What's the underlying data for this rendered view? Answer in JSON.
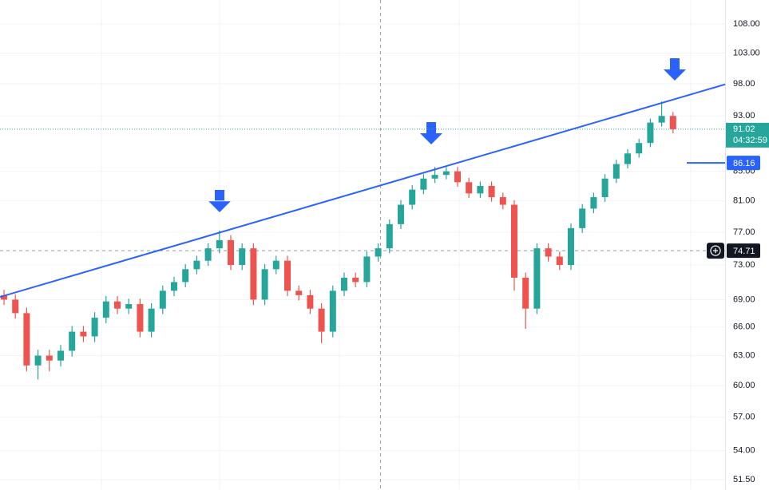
{
  "chart_data": {
    "type": "candlestick",
    "log_scale": true,
    "grid": true,
    "up_color": "#26a69a",
    "down_color": "#ef5350",
    "ylim": [
      50.64,
      112.28
    ],
    "yticks": [
      {
        "value": 108,
        "label": "108.00"
      },
      {
        "value": 103,
        "label": "103.00"
      },
      {
        "value": 98,
        "label": "98.00"
      },
      {
        "value": 93,
        "label": "93.00"
      },
      {
        "value": 85,
        "label": "85.00"
      },
      {
        "value": 81,
        "label": "81.00"
      },
      {
        "value": 77,
        "label": "77.00"
      },
      {
        "value": 73,
        "label": "73.00"
      },
      {
        "value": 69,
        "label": "69.00"
      },
      {
        "value": 66,
        "label": "66.00"
      },
      {
        "value": 63,
        "label": "63.00"
      },
      {
        "value": 60,
        "label": "60.00"
      },
      {
        "value": 57,
        "label": "57.00"
      },
      {
        "value": 54,
        "label": "54.00"
      },
      {
        "value": 51.5,
        "label": "51.50"
      }
    ],
    "open": [
      69.5,
      69.0,
      67.5,
      62.0,
      63.0,
      62.5,
      63.5,
      65.5,
      65.0,
      67.0,
      68.8,
      68.0,
      68.5,
      65.5,
      68.0,
      70.0,
      71.0,
      72.5,
      73.5,
      75.0,
      76.0,
      73.0,
      75.0,
      69.0,
      72.5,
      73.5,
      70.0,
      69.5,
      68.0,
      65.5,
      70.0,
      71.5,
      71.0,
      74.0,
      75.0,
      78.0,
      80.5,
      82.5,
      84.0,
      84.5,
      85.0,
      83.5,
      82.0,
      83.0,
      81.5,
      80.5,
      71.5,
      68.0,
      75.0,
      74.0,
      73.0,
      77.5,
      80.0,
      81.5,
      84.0,
      86.0,
      87.5,
      89.0,
      92.0,
      93.0
    ],
    "high": [
      70.1,
      69.6,
      68.1,
      63.6,
      63.6,
      64.1,
      66.1,
      66.1,
      67.6,
      69.4,
      69.4,
      69.1,
      69.1,
      68.6,
      70.6,
      71.6,
      73.1,
      74.1,
      75.6,
      77.2,
      76.6,
      75.6,
      75.6,
      73.1,
      74.1,
      74.1,
      70.6,
      70.1,
      68.6,
      70.6,
      72.1,
      72.1,
      74.6,
      75.6,
      78.6,
      81.1,
      83.1,
      84.6,
      85.6,
      85.6,
      85.6,
      84.1,
      83.6,
      83.6,
      82.1,
      81.1,
      72.1,
      75.6,
      75.6,
      74.6,
      78.1,
      80.6,
      82.1,
      84.6,
      86.6,
      88.1,
      89.6,
      92.6,
      95.2,
      93.6
    ],
    "low": [
      68.4,
      66.9,
      61.4,
      60.6,
      61.4,
      61.9,
      62.9,
      64.4,
      64.4,
      66.4,
      67.4,
      67.4,
      64.9,
      64.9,
      67.4,
      69.4,
      70.4,
      71.9,
      72.9,
      74.4,
      72.4,
      72.4,
      68.4,
      68.4,
      71.9,
      69.4,
      68.9,
      67.4,
      64.3,
      64.9,
      69.4,
      70.4,
      70.4,
      73.4,
      74.4,
      77.4,
      79.9,
      81.9,
      83.4,
      83.9,
      82.9,
      81.4,
      81.4,
      80.9,
      79.9,
      70.0,
      65.8,
      67.4,
      73.4,
      72.4,
      72.4,
      76.9,
      79.4,
      80.9,
      83.4,
      85.4,
      86.9,
      88.4,
      91.4,
      90.4
    ],
    "close": [
      69.0,
      67.5,
      62.0,
      63.0,
      62.5,
      63.5,
      65.5,
      65.0,
      67.0,
      68.8,
      68.0,
      68.5,
      65.5,
      68.0,
      70.0,
      71.0,
      72.5,
      73.5,
      75.0,
      76.0,
      73.0,
      75.0,
      69.0,
      72.5,
      73.5,
      70.0,
      69.5,
      68.0,
      65.5,
      70.0,
      71.5,
      71.0,
      74.0,
      75.0,
      78.0,
      80.5,
      82.5,
      84.0,
      84.5,
      85.0,
      83.5,
      82.0,
      83.0,
      81.5,
      80.5,
      71.5,
      68.0,
      75.0,
      74.0,
      73.0,
      77.5,
      80.0,
      81.5,
      84.0,
      86.0,
      87.5,
      89.0,
      92.0,
      93.0,
      91.02
    ],
    "trendline": {
      "x": [
        -0.35,
        63.6
      ],
      "values": [
        69.3,
        97.9
      ],
      "color": "#2962ff"
    },
    "last_price": 91.02,
    "countdown": "04:32:59",
    "alert_price": 86.16,
    "crosshair": {
      "x": 33.2,
      "price": 74.71
    }
  }
}
